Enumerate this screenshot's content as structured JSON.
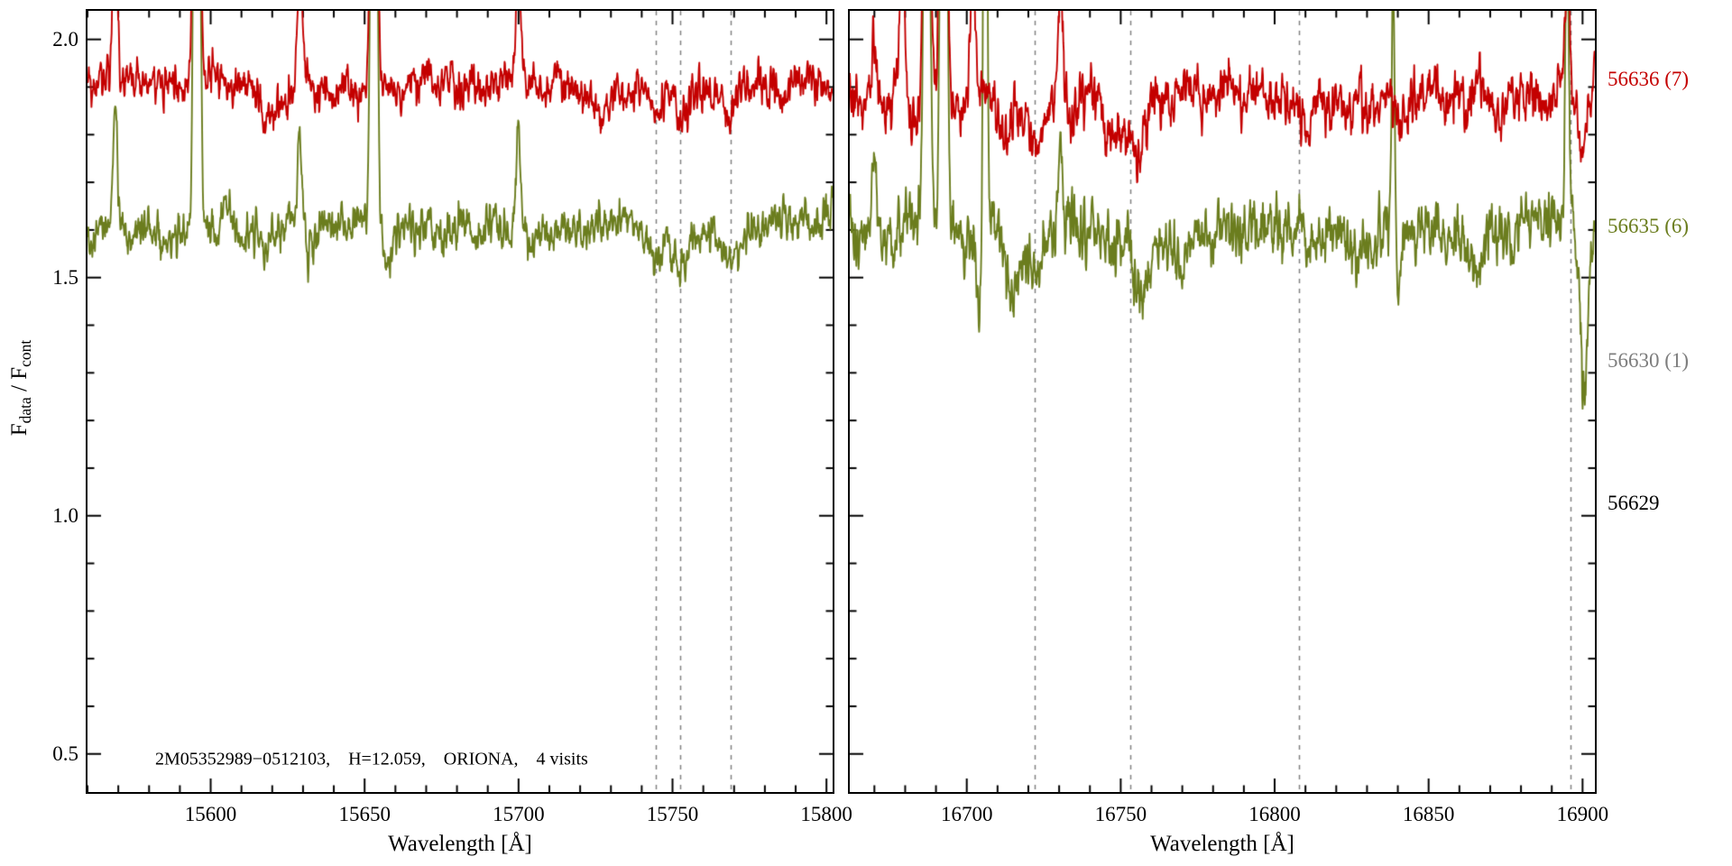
{
  "figure": {
    "background": "#ffffff"
  },
  "axes": {
    "ylim": [
      0.42,
      2.06
    ],
    "yticks": [
      0.5,
      1.0,
      1.5,
      2.0
    ],
    "ytick_labels": [
      "0.5",
      "1.0",
      "1.5",
      "2.0"
    ],
    "y_minor_step": 0.1,
    "y_title": {
      "pre": "F",
      "sub1": "data",
      "mid": " / F",
      "sub2": "cont"
    }
  },
  "annotation": {
    "text": "2M05352989−0512103,    H=12.059,    ORIONA,    4 visits"
  },
  "legend": [
    {
      "label": "56636 (7)",
      "color": "#c40000"
    },
    {
      "label": "56635 (6)",
      "color": "#6b7d1e"
    },
    {
      "label": "56630 (1)",
      "color": "#7d7d7d"
    },
    {
      "label": "56629",
      "color": "#000000"
    }
  ],
  "style": {
    "dashed_line_color": "#808080",
    "axis_color": "#000000"
  },
  "chart_data": [
    {
      "type": "line",
      "panel": "left",
      "xlabel": "Wavelength [Å]",
      "xlim": [
        15560,
        15802
      ],
      "xticks": [
        15600,
        15650,
        15700,
        15750,
        15800
      ],
      "xtick_labels": [
        "15600",
        "15650",
        "15700",
        "15750",
        "15800"
      ],
      "x_minor_step": 10,
      "dashed_lines": [
        15744.5,
        15752.5,
        15769
      ],
      "series": [
        {
          "name": "56636 (7)",
          "color": "#c40000",
          "baseline": 1.9,
          "noise": 0.02,
          "emission": [
            {
              "x": 15569,
              "a": 0.45,
              "w": 0.7
            },
            {
              "x": 15595.5,
              "a": 2.0,
              "w": 0.8
            },
            {
              "x": 15629,
              "a": 0.22,
              "w": 0.7
            },
            {
              "x": 15653,
              "a": 2.0,
              "w": 0.8
            },
            {
              "x": 15700,
              "a": 0.26,
              "w": 0.7
            }
          ],
          "absorption": [
            {
              "x": 15618,
              "a": 0.045,
              "w": 2.0
            },
            {
              "x": 15640,
              "a": 0.03,
              "w": 1.5
            },
            {
              "x": 15725,
              "a": 0.03,
              "w": 4.0
            },
            {
              "x": 15744.5,
              "a": 0.05,
              "w": 1.8
            },
            {
              "x": 15752.5,
              "a": 0.045,
              "w": 1.8
            },
            {
              "x": 15769,
              "a": 0.07,
              "w": 2.2
            }
          ]
        },
        {
          "name": "56635 (6)",
          "color": "#6b7d1e",
          "baseline": 1.6,
          "noise": 0.021,
          "emission": [
            {
              "x": 15569,
              "a": 0.23,
              "w": 0.7
            },
            {
              "x": 15595.5,
              "a": 2.0,
              "w": 0.8
            },
            {
              "x": 15605,
              "a": 0.08,
              "w": 1.2
            },
            {
              "x": 15629,
              "a": 0.22,
              "w": 0.7
            },
            {
              "x": 15653,
              "a": 2.0,
              "w": 0.8
            },
            {
              "x": 15700,
              "a": 0.21,
              "w": 0.7
            }
          ],
          "absorption": [
            {
              "x": 15618,
              "a": 0.04,
              "w": 2.0
            },
            {
              "x": 15657.5,
              "a": 0.06,
              "w": 1.2
            },
            {
              "x": 15744.5,
              "a": 0.05,
              "w": 1.8
            },
            {
              "x": 15752.5,
              "a": 0.05,
              "w": 1.8
            },
            {
              "x": 15769,
              "a": 0.08,
              "w": 2.2
            }
          ]
        }
      ]
    },
    {
      "type": "line",
      "panel": "right",
      "xlabel": "Wavelength [Å]",
      "xlim": [
        16662,
        16904
      ],
      "xticks": [
        16700,
        16750,
        16800,
        16850,
        16900
      ],
      "xtick_labels": [
        "16700",
        "16750",
        "16800",
        "16850",
        "16900"
      ],
      "x_minor_step": 10,
      "dashed_lines": [
        16722,
        16753,
        16808,
        16896
      ],
      "series": [
        {
          "name": "56636 (7)",
          "color": "#c40000",
          "baseline": 1.88,
          "noise": 0.027,
          "emission": [
            {
              "x": 16670,
              "a": 0.12,
              "w": 0.8
            },
            {
              "x": 16679,
              "a": 0.35,
              "w": 0.8
            },
            {
              "x": 16687,
              "a": 1.2,
              "w": 0.9
            },
            {
              "x": 16692.5,
              "a": 2.0,
              "w": 0.8
            },
            {
              "x": 16702,
              "a": 0.28,
              "w": 0.7
            },
            {
              "x": 16730.5,
              "a": 0.3,
              "w": 0.7
            },
            {
              "x": 16895,
              "a": 0.25,
              "w": 0.7
            }
          ],
          "absorption": [
            {
              "x": 16712,
              "a": 0.09,
              "w": 1.8
            },
            {
              "x": 16723,
              "a": 0.11,
              "w": 2.2
            },
            {
              "x": 16748,
              "a": 0.05,
              "w": 2.0
            },
            {
              "x": 16755.5,
              "a": 0.15,
              "w": 2.6
            },
            {
              "x": 16811,
              "a": 0.04,
              "w": 2.0
            },
            {
              "x": 16840,
              "a": 0.05,
              "w": 1.2
            },
            {
              "x": 16871,
              "a": 0.05,
              "w": 2.0
            },
            {
              "x": 16900,
              "a": 0.12,
              "w": 1.4
            }
          ]
        },
        {
          "name": "56635 (6)",
          "color": "#6b7d1e",
          "baseline": 1.595,
          "noise": 0.03,
          "emission": [
            {
              "x": 16670,
              "a": 0.1,
              "w": 0.8
            },
            {
              "x": 16687,
              "a": 1.2,
              "w": 0.9
            },
            {
              "x": 16692.5,
              "a": 2.0,
              "w": 0.8
            },
            {
              "x": 16706,
              "a": 1.6,
              "w": 0.55
            },
            {
              "x": 16730.5,
              "a": 0.17,
              "w": 0.7
            },
            {
              "x": 16838.5,
              "a": 0.5,
              "w": 0.5
            },
            {
              "x": 16895,
              "a": 0.55,
              "w": 0.6
            }
          ],
          "absorption": [
            {
              "x": 16704.3,
              "a": 0.17,
              "w": 1.0
            },
            {
              "x": 16715,
              "a": 0.09,
              "w": 1.8
            },
            {
              "x": 16723.5,
              "a": 0.13,
              "w": 2.2
            },
            {
              "x": 16756,
              "a": 0.13,
              "w": 2.6
            },
            {
              "x": 16770,
              "a": 0.05,
              "w": 2.0
            },
            {
              "x": 16811,
              "a": 0.05,
              "w": 2.0
            },
            {
              "x": 16840,
              "a": 0.16,
              "w": 0.8
            },
            {
              "x": 16866,
              "a": 0.06,
              "w": 2.0
            },
            {
              "x": 16900.5,
              "a": 0.33,
              "w": 1.1
            }
          ]
        }
      ]
    }
  ]
}
